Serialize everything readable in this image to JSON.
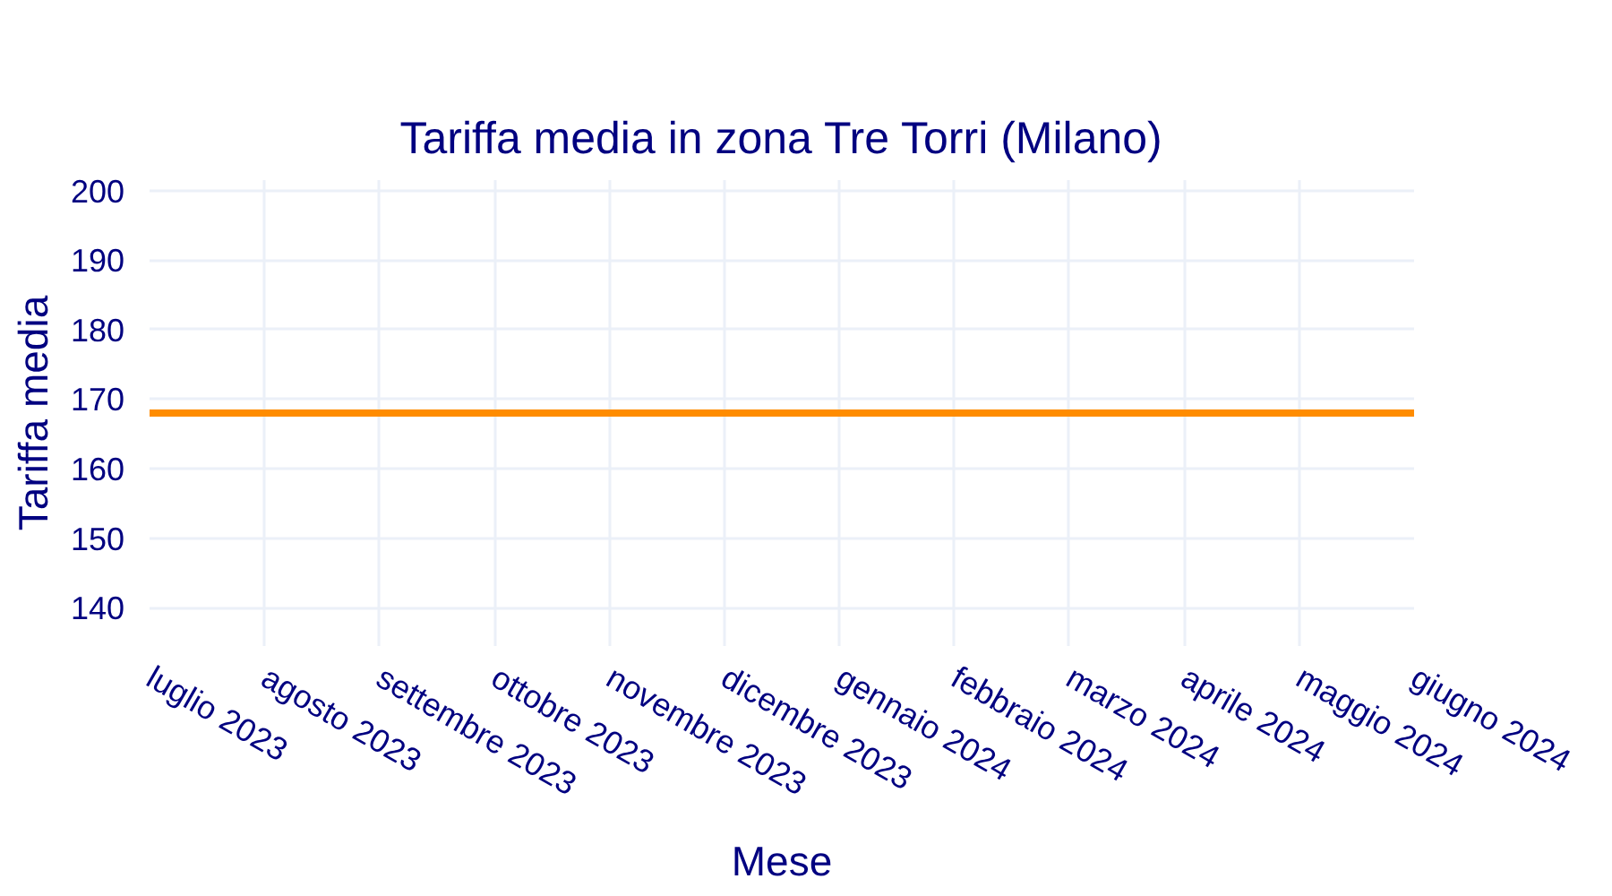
{
  "chart_data": {
    "type": "line",
    "title": "Tariffa media in zona Tre Torri (Milano)",
    "xlabel": "Mese",
    "ylabel": "Tariffa media",
    "categories": [
      "luglio 2023",
      "agosto 2023",
      "settembre 2023",
      "ottobre 2023",
      "novembre 2023",
      "dicembre 2023",
      "gennaio 2024",
      "febbraio 2024",
      "marzo 2024",
      "aprile 2024",
      "maggio 2024",
      "giugno 2024"
    ],
    "values": [
      168,
      168,
      168,
      168,
      168,
      168,
      168,
      168,
      168,
      168,
      168,
      168
    ],
    "color": "#ff8c00",
    "ylim": [
      134.5,
      201.5
    ],
    "yticks": [
      140,
      150,
      160,
      170,
      180,
      190,
      200
    ],
    "grid": true
  }
}
